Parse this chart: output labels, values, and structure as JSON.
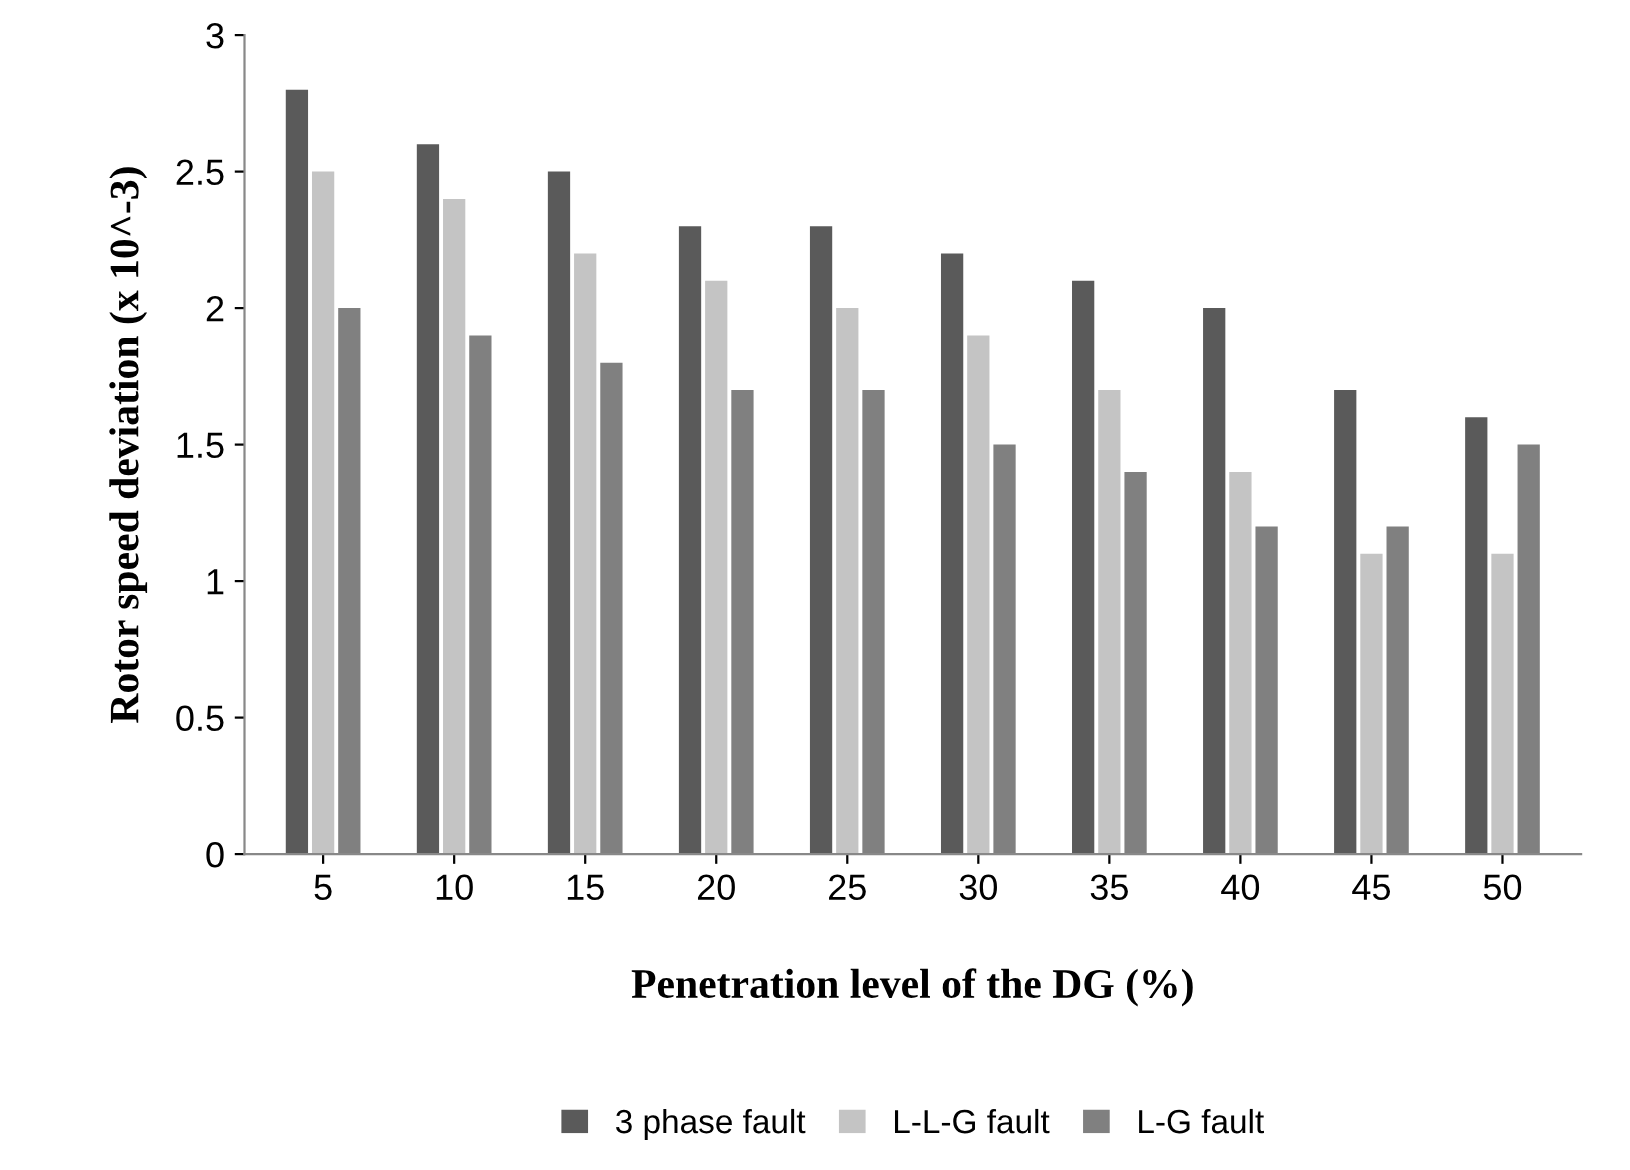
{
  "chart_data": {
    "type": "bar",
    "xlabel": "Penetration level of the DG (%)",
    "ylabel": "Rotor speed deviation (x 10^-3)",
    "categories": [
      "5",
      "10",
      "15",
      "20",
      "25",
      "30",
      "35",
      "40",
      "45",
      "50"
    ],
    "series": [
      {
        "name": "3 phase fault",
        "color": "#5a5a5a",
        "values": [
          2.8,
          2.6,
          2.5,
          2.3,
          2.3,
          2.2,
          2.1,
          2.0,
          1.7,
          1.6
        ]
      },
      {
        "name": "L-L-G fault",
        "color": "#c4c4c4",
        "values": [
          2.5,
          2.4,
          2.2,
          2.1,
          2.0,
          1.9,
          1.7,
          1.4,
          1.1,
          1.1
        ]
      },
      {
        "name": "L-G fault",
        "color": "#808080",
        "values": [
          2.0,
          1.9,
          1.8,
          1.7,
          1.7,
          1.5,
          1.4,
          1.2,
          1.2,
          1.5
        ]
      }
    ],
    "ylim": [
      0,
      3
    ],
    "yticks": [
      0,
      0.5,
      1,
      1.5,
      2,
      2.5,
      3
    ],
    "grid": false,
    "legend": "bottom"
  }
}
